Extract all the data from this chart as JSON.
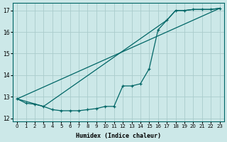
{
  "xlabel": "Humidex (Indice chaleur)",
  "bg_color": "#cce8e8",
  "grid_color": "#aacccc",
  "line_color": "#006666",
  "xlim": [
    -0.5,
    23.5
  ],
  "ylim": [
    11.85,
    17.35
  ],
  "yticks": [
    12,
    13,
    14,
    15,
    16,
    17
  ],
  "xticks": [
    0,
    1,
    2,
    3,
    4,
    5,
    6,
    7,
    8,
    9,
    10,
    11,
    12,
    13,
    14,
    15,
    16,
    17,
    18,
    19,
    20,
    21,
    22,
    23
  ],
  "line1_x": [
    0,
    1,
    2,
    3,
    4,
    5,
    6,
    7,
    8,
    9,
    10,
    11,
    12,
    13,
    14,
    15,
    16,
    17,
    18,
    19,
    20,
    21,
    22,
    23
  ],
  "line1_y": [
    12.9,
    12.7,
    12.65,
    12.55,
    12.4,
    12.35,
    12.35,
    12.35,
    12.4,
    12.45,
    12.55,
    12.55,
    13.5,
    13.5,
    13.6,
    14.3,
    16.1,
    16.55,
    17.0,
    17.0,
    17.05,
    17.05,
    17.05,
    17.1
  ],
  "line2_x": [
    0,
    23
  ],
  "line2_y": [
    12.9,
    17.1
  ],
  "line3_x": [
    0,
    3,
    17,
    18,
    19,
    20,
    21,
    22,
    23
  ],
  "line3_y": [
    12.9,
    12.55,
    16.55,
    17.0,
    17.0,
    17.05,
    17.05,
    17.05,
    17.1
  ]
}
